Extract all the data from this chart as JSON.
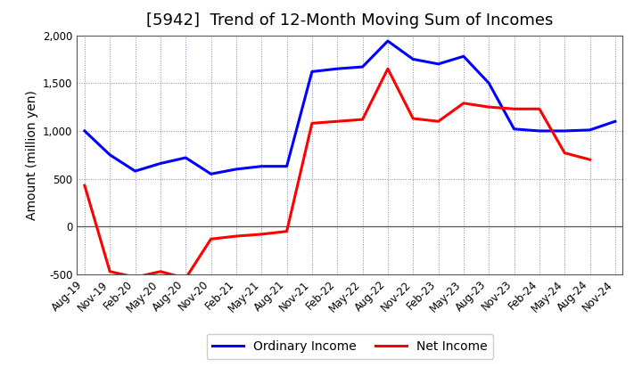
{
  "title": "[5942]  Trend of 12-Month Moving Sum of Incomes",
  "ylabel": "Amount (million yen)",
  "background_color": "#ffffff",
  "plot_bg_color": "#ffffff",
  "grid_color": "#8888aa",
  "ylim": [
    -500,
    2000
  ],
  "yticks": [
    -500,
    0,
    500,
    1000,
    1500,
    2000
  ],
  "x_labels": [
    "Aug-19",
    "Nov-19",
    "Feb-20",
    "May-20",
    "Aug-20",
    "Nov-20",
    "Feb-21",
    "May-21",
    "Aug-21",
    "Nov-21",
    "Feb-22",
    "May-22",
    "Aug-22",
    "Nov-22",
    "Feb-23",
    "May-23",
    "Aug-23",
    "Nov-23",
    "Feb-24",
    "May-24",
    "Aug-24",
    "Nov-24"
  ],
  "ordinary_income": [
    1000,
    750,
    580,
    660,
    720,
    550,
    600,
    630,
    630,
    1620,
    1650,
    1670,
    1940,
    1750,
    1700,
    1780,
    1500,
    1020,
    1000,
    1000,
    1010,
    1100
  ],
  "net_income": [
    430,
    -470,
    -530,
    -470,
    -540,
    -130,
    -100,
    -80,
    -50,
    1080,
    1100,
    1120,
    1650,
    1130,
    1100,
    1290,
    1250,
    1230,
    1230,
    770,
    700,
    null
  ],
  "ordinary_color": "#0000ff",
  "net_color": "#ff0000",
  "legend_labels": [
    "Ordinary Income",
    "Net Income"
  ],
  "title_fontsize": 13,
  "label_fontsize": 10,
  "tick_fontsize": 8.5,
  "line_width": 2.2
}
